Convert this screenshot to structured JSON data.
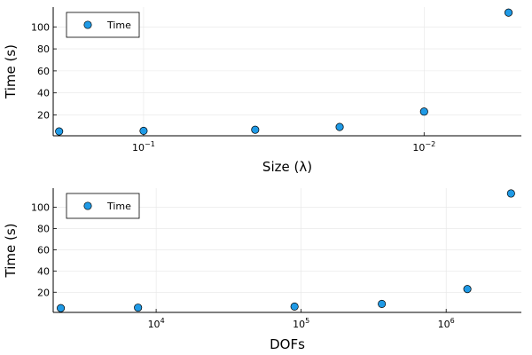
{
  "chart_data": [
    {
      "type": "scatter",
      "title": "",
      "xlabel": "Size (λ)",
      "ylabel": "Time (s)",
      "x_scale": "log10",
      "x_reversed": true,
      "xlim": [
        0.21,
        0.0045
      ],
      "ylim": [
        1,
        118
      ],
      "x_ticks": [
        {
          "value": 0.1,
          "base": "10",
          "exp": "−1"
        },
        {
          "value": 0.01,
          "base": "10",
          "exp": "−2"
        }
      ],
      "y_ticks": [
        20,
        40,
        60,
        80,
        100
      ],
      "grid": true,
      "legend": {
        "position": "top-left",
        "entries": [
          "Time"
        ]
      },
      "series": [
        {
          "name": "Time",
          "color": "#1f9ae6",
          "x": [
            0.2,
            0.1,
            0.04,
            0.02,
            0.01,
            0.005
          ],
          "y": [
            5,
            5.5,
            6.5,
            9,
            23,
            113
          ]
        }
      ]
    },
    {
      "type": "scatter",
      "title": "",
      "xlabel": "DOFs",
      "ylabel": "Time (s)",
      "x_scale": "log10",
      "x_reversed": false,
      "xlim": [
        1950,
        3300000
      ],
      "ylim": [
        1,
        118
      ],
      "x_ticks": [
        {
          "value": 10000,
          "base": "10",
          "exp": "4"
        },
        {
          "value": 100000,
          "base": "10",
          "exp": "5"
        },
        {
          "value": 1000000,
          "base": "10",
          "exp": "6"
        }
      ],
      "y_ticks": [
        20,
        40,
        60,
        80,
        100
      ],
      "grid": true,
      "legend": {
        "position": "top-left",
        "entries": [
          "Time"
        ]
      },
      "series": [
        {
          "name": "Time",
          "color": "#1f9ae6",
          "x": [
            2200,
            7500,
            90000,
            360000,
            1400000,
            2800000
          ],
          "y": [
            5,
            5.5,
            6.5,
            9,
            23,
            113
          ]
        }
      ]
    }
  ]
}
